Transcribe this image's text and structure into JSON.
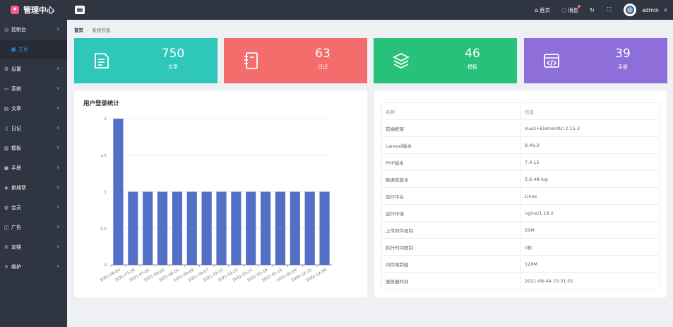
{
  "app": {
    "title": "管理中心"
  },
  "sidebar": {
    "items": [
      {
        "label": "控制台",
        "icon": "dashboard-icon"
      },
      {
        "label": "主页",
        "icon": "grid-icon",
        "sub": true
      },
      {
        "label": "设置",
        "icon": "gear-icon"
      },
      {
        "label": "系统",
        "icon": "monitor-icon"
      },
      {
        "label": "文章",
        "icon": "article-icon"
      },
      {
        "label": "日记",
        "icon": "notebook-icon"
      },
      {
        "label": "模板",
        "icon": "template-icon"
      },
      {
        "label": "手册",
        "icon": "manual-icon"
      },
      {
        "label": "俯线帮",
        "icon": "help-icon"
      },
      {
        "label": "会员",
        "icon": "user-icon"
      },
      {
        "label": "广告",
        "icon": "ad-icon"
      },
      {
        "label": "友链",
        "icon": "link-icon"
      },
      {
        "label": "维护",
        "icon": "wrench-icon"
      }
    ]
  },
  "topbar": {
    "home": "首页",
    "messages": "消息",
    "username": "admin"
  },
  "breadcrumb": {
    "home": "首页",
    "current": "系统信息"
  },
  "stats": [
    {
      "value": "750",
      "label": "文章",
      "color": "#2ec7b9"
    },
    {
      "value": "63",
      "label": "日记",
      "color": "#f56c6c"
    },
    {
      "value": "46",
      "label": "模板",
      "color": "#27c17a"
    },
    {
      "value": "39",
      "label": "手册",
      "color": "#8e6fd9"
    }
  ],
  "chart_data": {
    "type": "bar",
    "title": "用户登录统计",
    "categories": [
      "2021-08-04",
      "2021-07-28",
      "2021-07-01",
      "2021-06-03",
      "2021-06-01",
      "2021-04-09",
      "2021-04-07",
      "2021-03-12",
      "2021-02-23",
      "2021-01-21",
      "2021-01-19",
      "2021-01-15",
      "2021-01-04",
      "2020-12-15",
      "2020-12-06"
    ],
    "values": [
      2,
      1,
      1,
      1,
      1,
      1,
      1,
      1,
      1,
      1,
      1,
      1,
      1,
      1,
      1
    ],
    "ylim": [
      0,
      2
    ],
    "yticks": [
      "0",
      "0.5",
      "1",
      "1.5",
      "2"
    ],
    "xlabel": "",
    "ylabel": "",
    "bar_color": "#5470c6",
    "grid": true
  },
  "sysinfo": {
    "rows": [
      [
        "名称",
        "信息"
      ],
      [
        "前端框架",
        "Vue2+ElementUI 2.15.3"
      ],
      [
        "Laravel版本",
        "8.49.2"
      ],
      [
        "PHP版本",
        "7.4.12"
      ],
      [
        "数据库版本",
        "5.6.48-log"
      ],
      [
        "运行平台",
        "Linux"
      ],
      [
        "运行环境",
        "nginx/1.18.0"
      ],
      [
        "上传附件限制",
        "50M"
      ],
      [
        "执行时间限制",
        "0秒"
      ],
      [
        "内存限制值",
        "128M"
      ],
      [
        "服务器时间",
        "2021-08-04 15:31:01"
      ]
    ]
  }
}
